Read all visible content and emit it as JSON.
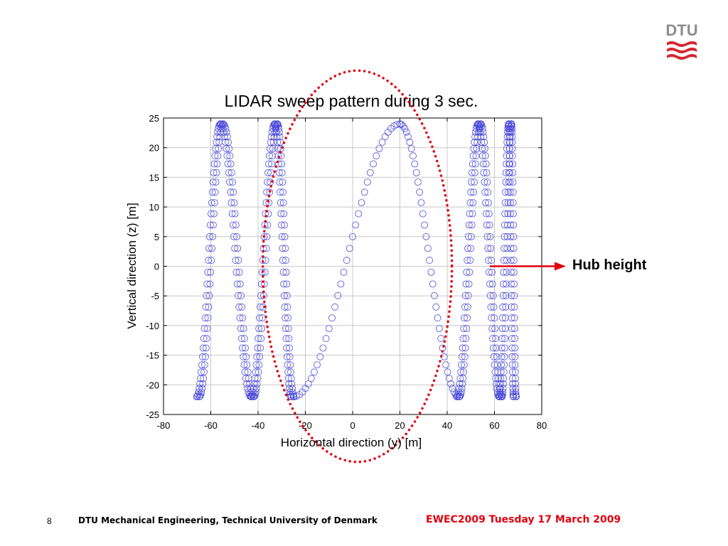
{
  "logo": {
    "text": "DTU"
  },
  "annotation": {
    "label": "Hub height",
    "color": "#e0000f"
  },
  "footer": {
    "page_number": "8",
    "left_text": "DTU Mechanical Engineering, Technical University of Denmark",
    "right_text": "EWEC2009 Tuesday 17 March 2009"
  },
  "colors": {
    "marker": "#4a4ad8",
    "highlight": "#e0000f",
    "grid": "#c8c8c8"
  },
  "chart_data": {
    "type": "scatter",
    "title": "LIDAR sweep pattern during 3 sec.",
    "xlabel": "Horizontal direction (y) [m]",
    "ylabel": "Vertical direction (z) [m]",
    "xlim": [
      -80,
      80
    ],
    "ylim": [
      -25,
      25
    ],
    "xticks": [
      -80,
      -60,
      -40,
      -20,
      0,
      20,
      40,
      60,
      80
    ],
    "yticks": [
      25,
      20,
      15,
      10,
      5,
      0,
      -5,
      -10,
      -15,
      -20,
      -25
    ],
    "grid": true,
    "marker": "open-circle",
    "z_range": [
      -22,
      24
    ],
    "lobes": [
      {
        "x_left": -66,
        "x_right": -56
      },
      {
        "x_left": -56,
        "x_right": -43
      },
      {
        "x_left": -43,
        "x_right": -33
      },
      {
        "x_left": -33,
        "x_right": -26
      },
      {
        "x_left": -25,
        "x_right": 20
      },
      {
        "x_left": 20,
        "x_right": 45
      },
      {
        "x_left": 44,
        "x_right": 53
      },
      {
        "x_left": 53,
        "x_right": 62
      },
      {
        "x_left": 62,
        "x_right": 66
      },
      {
        "x_left": 66,
        "x_right": 68
      }
    ],
    "highlight_region": {
      "shape": "dotted-ellipse",
      "x_center": 2,
      "y_center": 0,
      "x_radius": 40,
      "y_radius": 33
    },
    "annotation_point": {
      "x": 58,
      "y": 0
    }
  }
}
